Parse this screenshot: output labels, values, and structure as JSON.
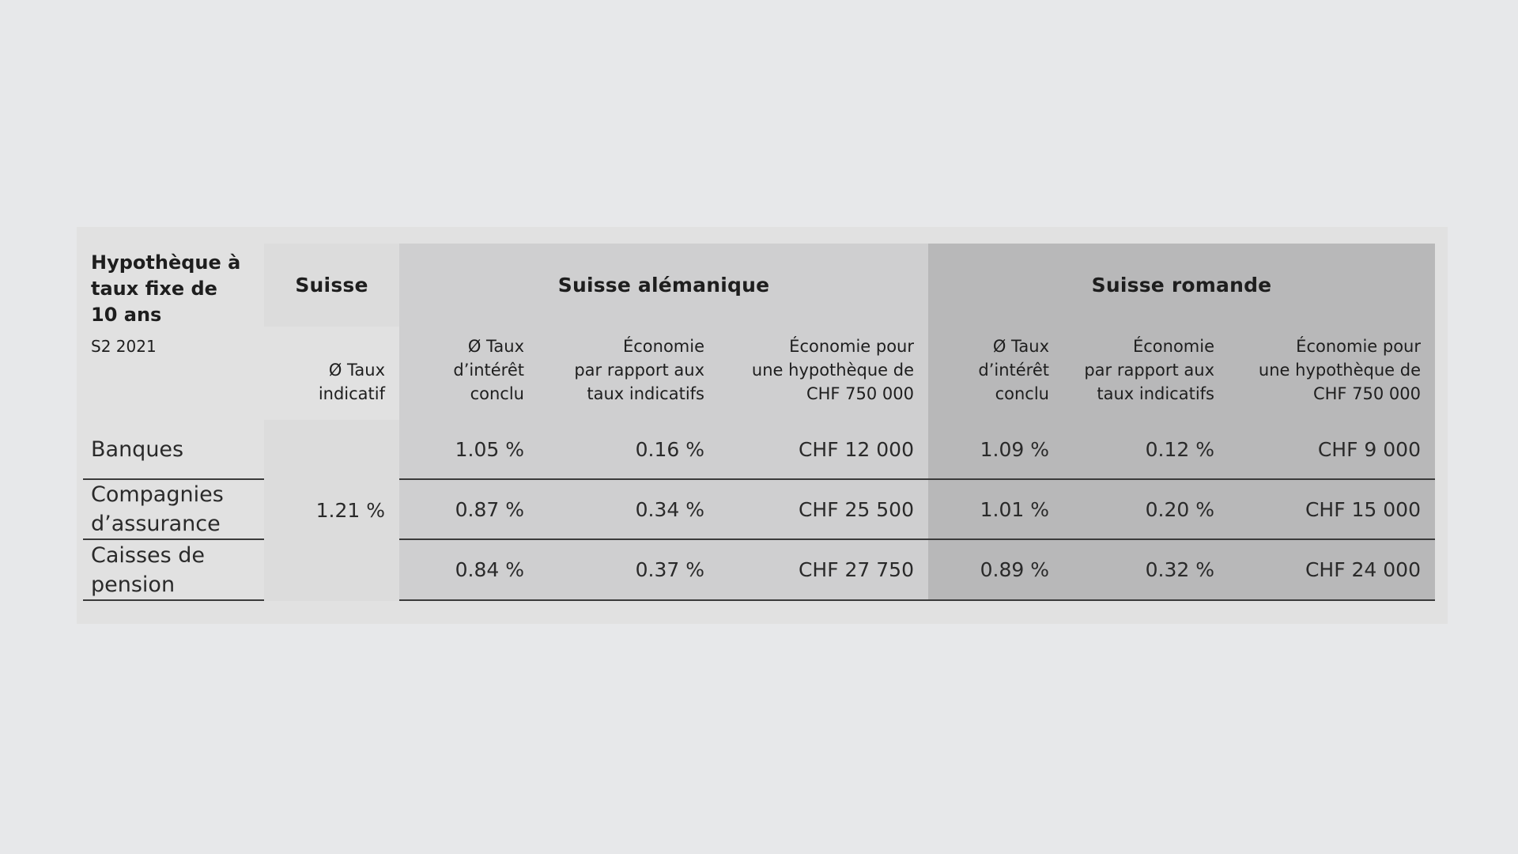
{
  "chart_data": {
    "type": "table",
    "title": "Hypothèque à\ntaux fixe de\n10 ans",
    "subtitle": "S2 2021",
    "groups": [
      "Suisse",
      "Suisse alémanique",
      "Suisse romande"
    ],
    "subheaders": {
      "suisse": "Ø Taux\nindicatif",
      "rate": "Ø Taux\nd’intérêt\nconclu",
      "saving": "Économie\npar rapport aux\ntaux indicatifs",
      "saving_chf": "Économie pour\nune hypothèque de\nCHF 750 000"
    },
    "suisse_rate": "1.21 %",
    "rows": [
      {
        "label": "Banques",
        "ale": [
          "1.05 %",
          "0.16 %",
          "CHF 12 000"
        ],
        "rom": [
          "1.09 %",
          "0.12 %",
          "CHF 9 000"
        ]
      },
      {
        "label": "Compagnies\nd’assurance",
        "ale": [
          "0.87 %",
          "0.34 %",
          "CHF 25 500"
        ],
        "rom": [
          "1.01 %",
          "0.20 %",
          "CHF 15 000"
        ]
      },
      {
        "label": "Caisses de\npension",
        "ale": [
          "0.84 %",
          "0.37 %",
          "CHF 27 750"
        ],
        "rom": [
          "0.89 %",
          "0.32 %",
          "CHF 24 000"
        ]
      }
    ]
  }
}
